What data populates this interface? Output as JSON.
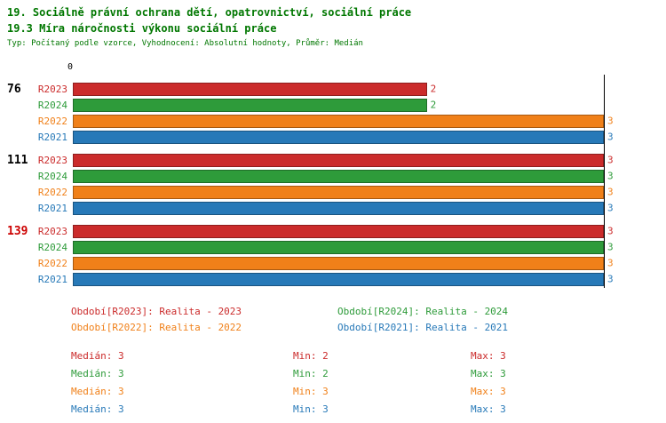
{
  "header": {
    "title_line1": "19. Sociálně právní ochrana dětí, opatrovnictví, sociální práce",
    "title_line2": "19.3 Míra náročnosti výkonu sociální práce",
    "subtitle": "Typ: Počítaný podle vzorce, Vyhodnocení: Absolutní hodnoty, Průměr: Medián"
  },
  "colors": {
    "title": "#007700",
    "axis": "#000000",
    "group_label_highlight": "#cc0000",
    "series": {
      "R2023": "#cb2b2b",
      "R2024": "#2e9b3a",
      "R2022": "#f08019",
      "R2021": "#2779b8"
    }
  },
  "chart_data": {
    "type": "bar",
    "orientation": "horizontal",
    "title": "19.3 Míra náročnosti výkonu sociální práce",
    "xlabel": "",
    "ylabel": "",
    "x_min": 0,
    "x_max": 3,
    "axis_zero_label": "0",
    "grid": false,
    "legend_position": "bottom",
    "categories": [
      "76",
      "111",
      "139"
    ],
    "series": [
      {
        "name": "R2023",
        "values": [
          2,
          3,
          3
        ]
      },
      {
        "name": "R2024",
        "values": [
          2,
          3,
          3
        ]
      },
      {
        "name": "R2022",
        "values": [
          3,
          3,
          3
        ]
      },
      {
        "name": "R2021",
        "values": [
          3,
          3,
          3
        ]
      }
    ],
    "groups": [
      {
        "label": "76",
        "label_color": "#000000",
        "bars": [
          {
            "series": "R2023",
            "value": 2
          },
          {
            "series": "R2024",
            "value": 2
          },
          {
            "series": "R2022",
            "value": 3
          },
          {
            "series": "R2021",
            "value": 3
          }
        ]
      },
      {
        "label": "111",
        "label_color": "#000000",
        "bars": [
          {
            "series": "R2023",
            "value": 3
          },
          {
            "series": "R2024",
            "value": 3
          },
          {
            "series": "R2022",
            "value": 3
          },
          {
            "series": "R2021",
            "value": 3
          }
        ]
      },
      {
        "label": "139",
        "label_color": "#cc0000",
        "bars": [
          {
            "series": "R2023",
            "value": 3
          },
          {
            "series": "R2024",
            "value": 3
          },
          {
            "series": "R2022",
            "value": 3
          },
          {
            "series": "R2021",
            "value": 3
          }
        ]
      }
    ]
  },
  "legend": {
    "items": [
      {
        "series": "R2023",
        "label": "Období[R2023]: Realita - 2023"
      },
      {
        "series": "R2024",
        "label": "Období[R2024]: Realita - 2024"
      },
      {
        "series": "R2022",
        "label": "Období[R2022]: Realita - 2022"
      },
      {
        "series": "R2021",
        "label": "Období[R2021]: Realita - 2021"
      }
    ]
  },
  "stats": {
    "rows": [
      {
        "series": "R2023",
        "median": "Medián: 3",
        "min": "Min: 2",
        "max": "Max: 3"
      },
      {
        "series": "R2024",
        "median": "Medián: 3",
        "min": "Min: 2",
        "max": "Max: 3"
      },
      {
        "series": "R2022",
        "median": "Medián: 3",
        "min": "Min: 3",
        "max": "Max: 3"
      },
      {
        "series": "R2021",
        "median": "Medián: 3",
        "min": "Min: 3",
        "max": "Max: 3"
      }
    ]
  }
}
